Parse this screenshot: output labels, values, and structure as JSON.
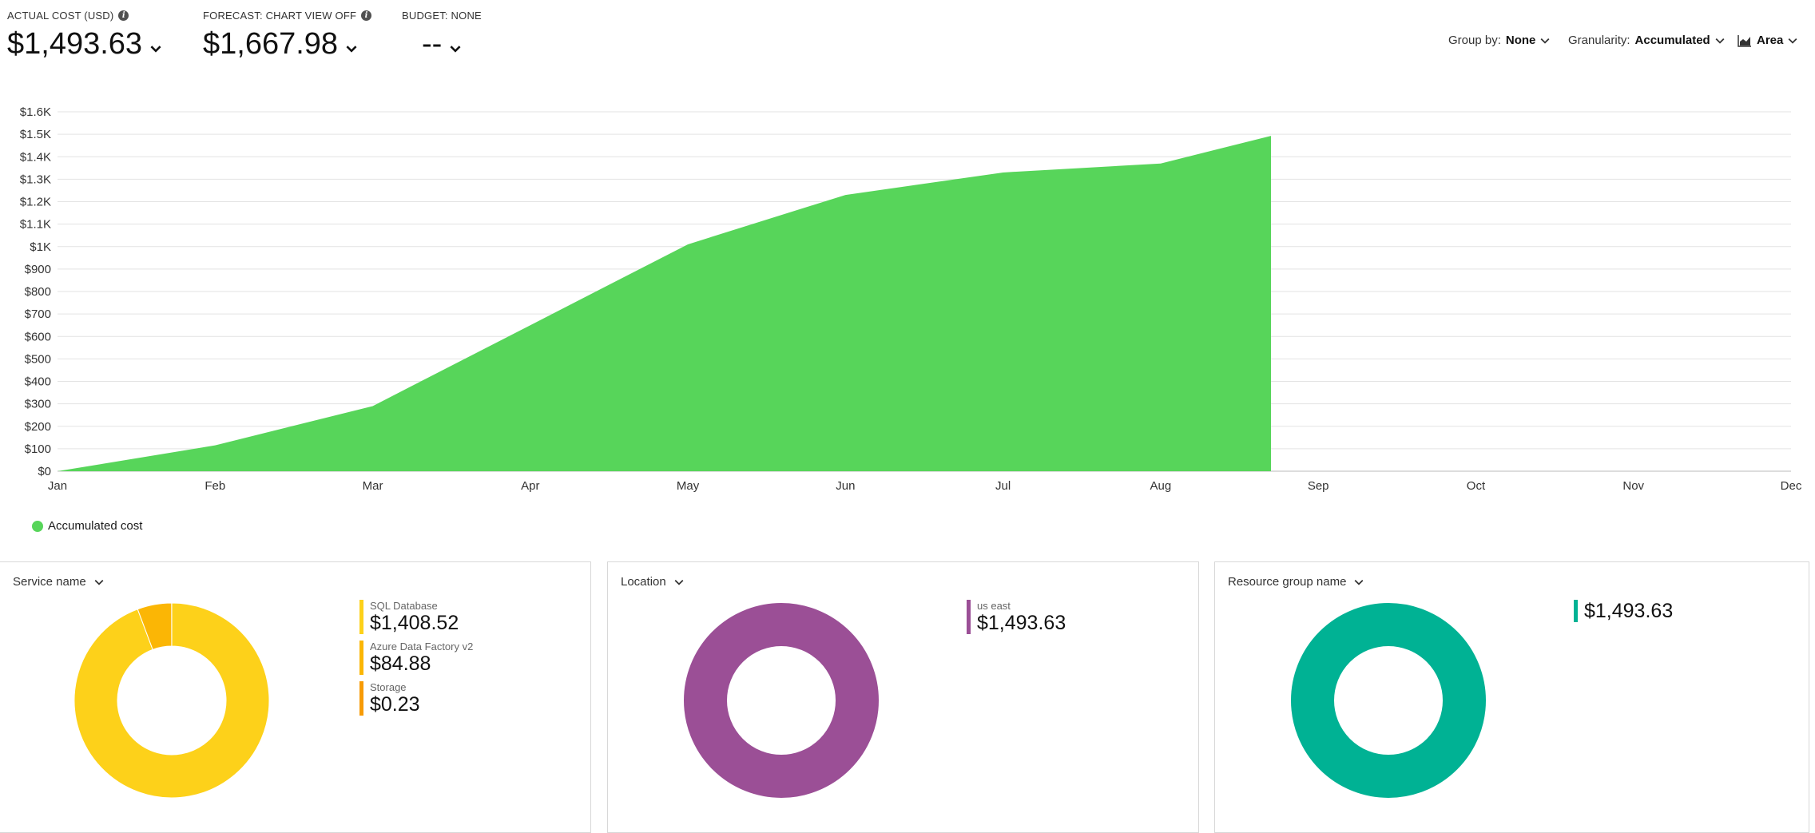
{
  "kpis": {
    "actual": {
      "label": "ACTUAL COST (USD)",
      "value": "$1,493.63"
    },
    "forecast": {
      "label": "FORECAST: CHART VIEW OFF",
      "value": "$1,667.98"
    },
    "budget": {
      "label": "BUDGET: NONE",
      "value": "--"
    }
  },
  "toolbar": {
    "group_by_label": "Group by:",
    "group_by_value": "None",
    "granularity_label": "Granularity:",
    "granularity_value": "Accumulated",
    "chart_type_label": "Area"
  },
  "colors": {
    "area": "#57d55a",
    "sql": "#fdd11a",
    "adf": "#fbb605",
    "storage": "#f79b06",
    "location": "#9b4f96",
    "resource_group": "#00b294"
  },
  "chart_data": {
    "type": "area",
    "x": [
      "Jan",
      "Feb",
      "Mar",
      "Apr",
      "May",
      "Jun",
      "Jul",
      "Aug",
      "Sep",
      "Oct",
      "Nov",
      "Dec"
    ],
    "y_ticks": [
      "$0",
      "$100",
      "$200",
      "$300",
      "$400",
      "$500",
      "$600",
      "$700",
      "$800",
      "$900",
      "$1K",
      "$1.1K",
      "$1.2K",
      "$1.3K",
      "$1.4K",
      "$1.5K",
      "$1.6K"
    ],
    "ylim": [
      0,
      1600
    ],
    "series": [
      {
        "name": "Accumulated cost",
        "points": [
          [
            0,
            0
          ],
          [
            1,
            115
          ],
          [
            2,
            290
          ],
          [
            3,
            650
          ],
          [
            4,
            1010
          ],
          [
            5,
            1230
          ],
          [
            6,
            1330
          ],
          [
            7,
            1370
          ],
          [
            7.7,
            1493
          ]
        ]
      }
    ],
    "grid": true,
    "legend": "bottom-left"
  },
  "panels": {
    "service": {
      "header": "Service name",
      "items": [
        {
          "name": "SQL Database",
          "value": "$1,408.52",
          "amount": 1408.52
        },
        {
          "name": "Azure Data Factory v2",
          "value": "$84.88",
          "amount": 84.88
        },
        {
          "name": "Storage",
          "value": "$0.23",
          "amount": 0.23
        }
      ]
    },
    "location": {
      "header": "Location",
      "items": [
        {
          "name": "us east",
          "value": "$1,493.63",
          "amount": 1493.63
        }
      ]
    },
    "resource_group": {
      "header": "Resource group name",
      "items": [
        {
          "name": "",
          "value": "$1,493.63",
          "amount": 1493.63
        }
      ]
    }
  }
}
